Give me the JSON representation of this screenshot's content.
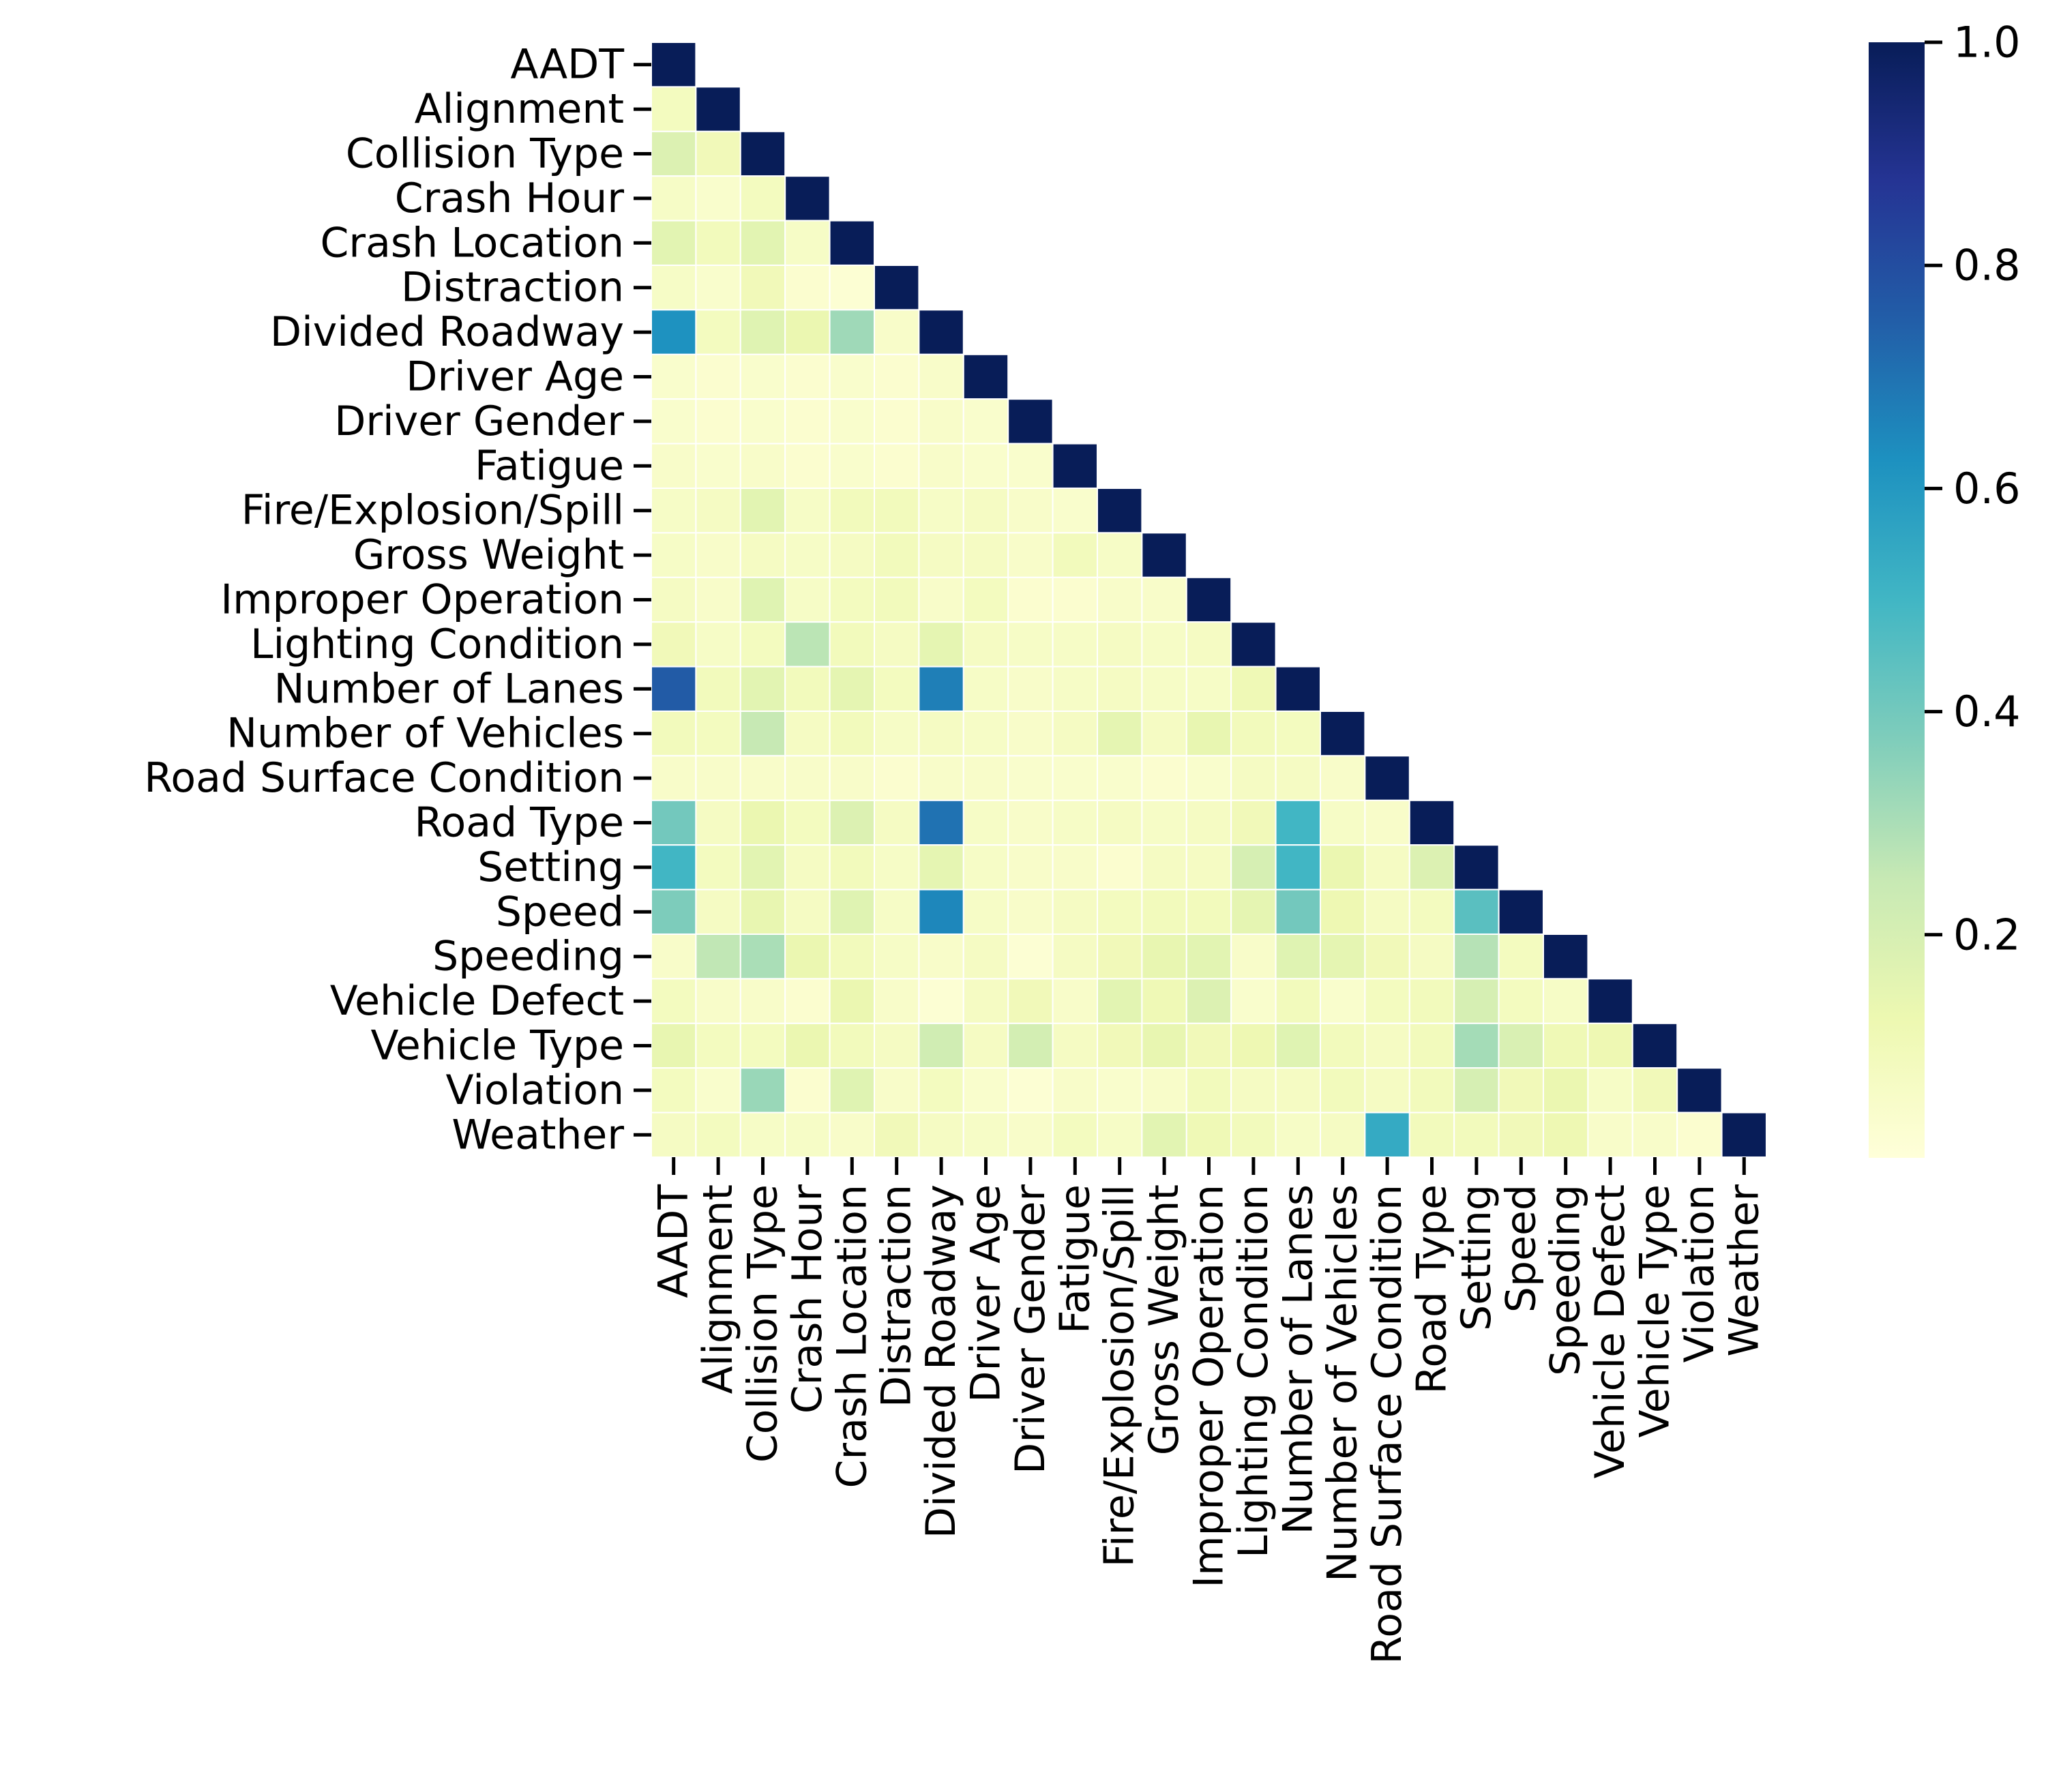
{
  "chart_data": {
    "type": "heatmap",
    "title": "",
    "xlabel": "",
    "ylabel": "",
    "mask": "upper-triangle",
    "labels": [
      "AADT",
      "Alignment",
      "Collision Type",
      "Crash Hour",
      "Crash Location",
      "Distraction",
      "Divided Roadway",
      "Driver Age",
      "Driver Gender",
      "Fatigue",
      "Fire/Explosion/Spill",
      "Gross Weight",
      "Improper Operation",
      "Lighting Condition",
      "Number of Lanes",
      "Number of Vehicles",
      "Road Surface Condition",
      "Road Type",
      "Setting",
      "Speed",
      "Speeding",
      "Vehicle Defect",
      "Vehicle Type",
      "Violation",
      "Weather"
    ],
    "values": [
      [
        1.0
      ],
      [
        0.08,
        1.0
      ],
      [
        0.18,
        0.1,
        1.0
      ],
      [
        0.06,
        0.04,
        0.08,
        1.0
      ],
      [
        0.16,
        0.09,
        0.16,
        0.06,
        1.0
      ],
      [
        0.06,
        0.04,
        0.1,
        0.03,
        0.02,
        1.0
      ],
      [
        0.62,
        0.08,
        0.17,
        0.13,
        0.32,
        0.05,
        1.0
      ],
      [
        0.04,
        0.03,
        0.04,
        0.03,
        0.04,
        0.03,
        0.05,
        1.0
      ],
      [
        0.04,
        0.03,
        0.04,
        0.03,
        0.04,
        0.03,
        0.05,
        0.04,
        1.0
      ],
      [
        0.05,
        0.04,
        0.05,
        0.03,
        0.04,
        0.03,
        0.05,
        0.04,
        0.04,
        1.0
      ],
      [
        0.06,
        0.07,
        0.16,
        0.06,
        0.09,
        0.09,
        0.06,
        0.07,
        0.05,
        0.04,
        1.0
      ],
      [
        0.06,
        0.05,
        0.07,
        0.06,
        0.07,
        0.09,
        0.07,
        0.07,
        0.05,
        0.09,
        0.06,
        1.0
      ],
      [
        0.07,
        0.05,
        0.17,
        0.06,
        0.08,
        0.09,
        0.05,
        0.08,
        0.03,
        0.03,
        0.05,
        0.05,
        1.0
      ],
      [
        0.1,
        0.06,
        0.08,
        0.27,
        0.09,
        0.07,
        0.15,
        0.07,
        0.06,
        0.06,
        0.07,
        0.06,
        0.07,
        1.0
      ],
      [
        0.76,
        0.09,
        0.16,
        0.09,
        0.15,
        0.08,
        0.67,
        0.06,
        0.05,
        0.06,
        0.07,
        0.06,
        0.06,
        0.11,
        1.0
      ],
      [
        0.09,
        0.08,
        0.25,
        0.07,
        0.09,
        0.06,
        0.07,
        0.06,
        0.05,
        0.07,
        0.15,
        0.07,
        0.14,
        0.09,
        0.08,
        1.0
      ],
      [
        0.05,
        0.05,
        0.05,
        0.05,
        0.05,
        0.03,
        0.05,
        0.05,
        0.04,
        0.04,
        0.04,
        0.03,
        0.04,
        0.07,
        0.07,
        0.05,
        1.0
      ],
      [
        0.4,
        0.07,
        0.13,
        0.08,
        0.18,
        0.07,
        0.7,
        0.06,
        0.05,
        0.06,
        0.07,
        0.06,
        0.07,
        0.1,
        0.5,
        0.06,
        0.05,
        1.0
      ],
      [
        0.5,
        0.08,
        0.16,
        0.07,
        0.09,
        0.06,
        0.15,
        0.06,
        0.05,
        0.05,
        0.03,
        0.07,
        0.07,
        0.2,
        0.5,
        0.13,
        0.07,
        0.18,
        1.0
      ],
      [
        0.38,
        0.07,
        0.14,
        0.07,
        0.17,
        0.06,
        0.65,
        0.06,
        0.05,
        0.07,
        0.08,
        0.09,
        0.09,
        0.15,
        0.4,
        0.12,
        0.07,
        0.08,
        0.45,
        1.0
      ],
      [
        0.05,
        0.26,
        0.3,
        0.13,
        0.09,
        0.06,
        0.05,
        0.07,
        0.02,
        0.07,
        0.1,
        0.14,
        0.16,
        0.05,
        0.17,
        0.15,
        0.1,
        0.07,
        0.28,
        0.08,
        1.0
      ],
      [
        0.08,
        0.05,
        0.05,
        0.03,
        0.13,
        0.05,
        0.02,
        0.07,
        0.1,
        0.05,
        0.16,
        0.11,
        0.18,
        0.04,
        0.09,
        0.04,
        0.08,
        0.09,
        0.2,
        0.08,
        0.06,
        1.0
      ],
      [
        0.14,
        0.08,
        0.08,
        0.13,
        0.09,
        0.07,
        0.22,
        0.07,
        0.21,
        0.07,
        0.1,
        0.14,
        0.1,
        0.12,
        0.17,
        0.09,
        0.07,
        0.09,
        0.31,
        0.19,
        0.11,
        0.12,
        1.0
      ],
      [
        0.08,
        0.04,
        0.33,
        0.03,
        0.17,
        0.05,
        0.08,
        0.04,
        0.02,
        0.05,
        0.04,
        0.05,
        0.09,
        0.07,
        0.07,
        0.09,
        0.07,
        0.09,
        0.2,
        0.1,
        0.13,
        0.06,
        0.1,
        1.0
      ],
      [
        0.07,
        0.08,
        0.06,
        0.06,
        0.05,
        0.1,
        0.07,
        0.06,
        0.05,
        0.08,
        0.06,
        0.16,
        0.11,
        0.09,
        0.06,
        0.07,
        0.54,
        0.09,
        0.09,
        0.1,
        0.12,
        0.05,
        0.05,
        0.03,
        1.0
      ]
    ],
    "colorbar": {
      "colormap": "YlGnBu",
      "min": 0.0,
      "max": 1.0,
      "ticks": [
        0.2,
        0.4,
        0.6,
        0.8,
        1.0
      ],
      "tick_labels": [
        "0.2",
        "0.4",
        "0.6",
        "0.8",
        "1.0"
      ]
    }
  }
}
